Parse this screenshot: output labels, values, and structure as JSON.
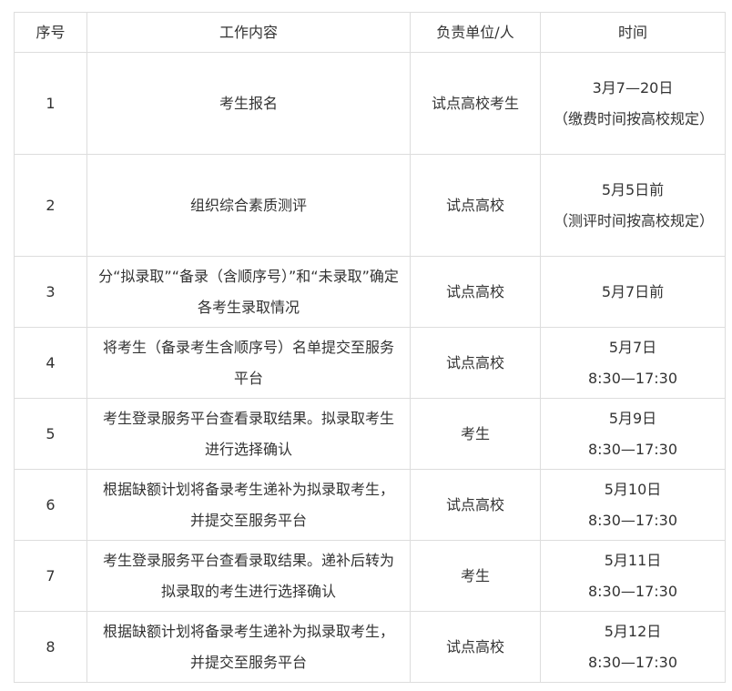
{
  "headers": [
    "序号",
    "工作内容",
    "负责单位/人",
    "时间"
  ],
  "rows": [
    {
      "no": "1",
      "task": "考生报名",
      "owner": "试点高校考生",
      "time": "3月7—20日（缴费时间按高校规定）"
    },
    {
      "no": "2",
      "task": "组织综合素质测评",
      "owner": "试点高校",
      "time": "5月5日前（测评时间按高校规定）"
    },
    {
      "no": "3",
      "task": "分“拟录取”“备录（含顺序号）”和“未录取”确定各考生录取情况",
      "owner": "试点高校",
      "time": "5月7日前"
    },
    {
      "no": "4",
      "task": "将考生（备录考生含顺序号）名单提交至服务平台",
      "owner": "试点高校",
      "time": "5月7日 8:30—17:30"
    },
    {
      "no": "5",
      "task": "考生登录服务平台查看录取结果。拟录取考生进行选择确认",
      "owner": "考生",
      "time": "5月9日 8:30—17:30"
    },
    {
      "no": "6",
      "task": "根据缺额计划将备录考生递补为拟录取考生，并提交至服务平台",
      "owner": "试点高校",
      "time": "5月10日 8:30—17:30"
    },
    {
      "no": "7",
      "task": "考生登录服务平台查看录取结果。递补后转为拟录取的考生进行选择确认",
      "owner": "考生",
      "time": "5月11日 8:30—17:30"
    },
    {
      "no": "8",
      "task": "根据缺额计划将备录考生递补为拟录取考生，并提交至服务平台",
      "owner": "试点高校",
      "time": "5月12日 8:30—17:30"
    }
  ]
}
